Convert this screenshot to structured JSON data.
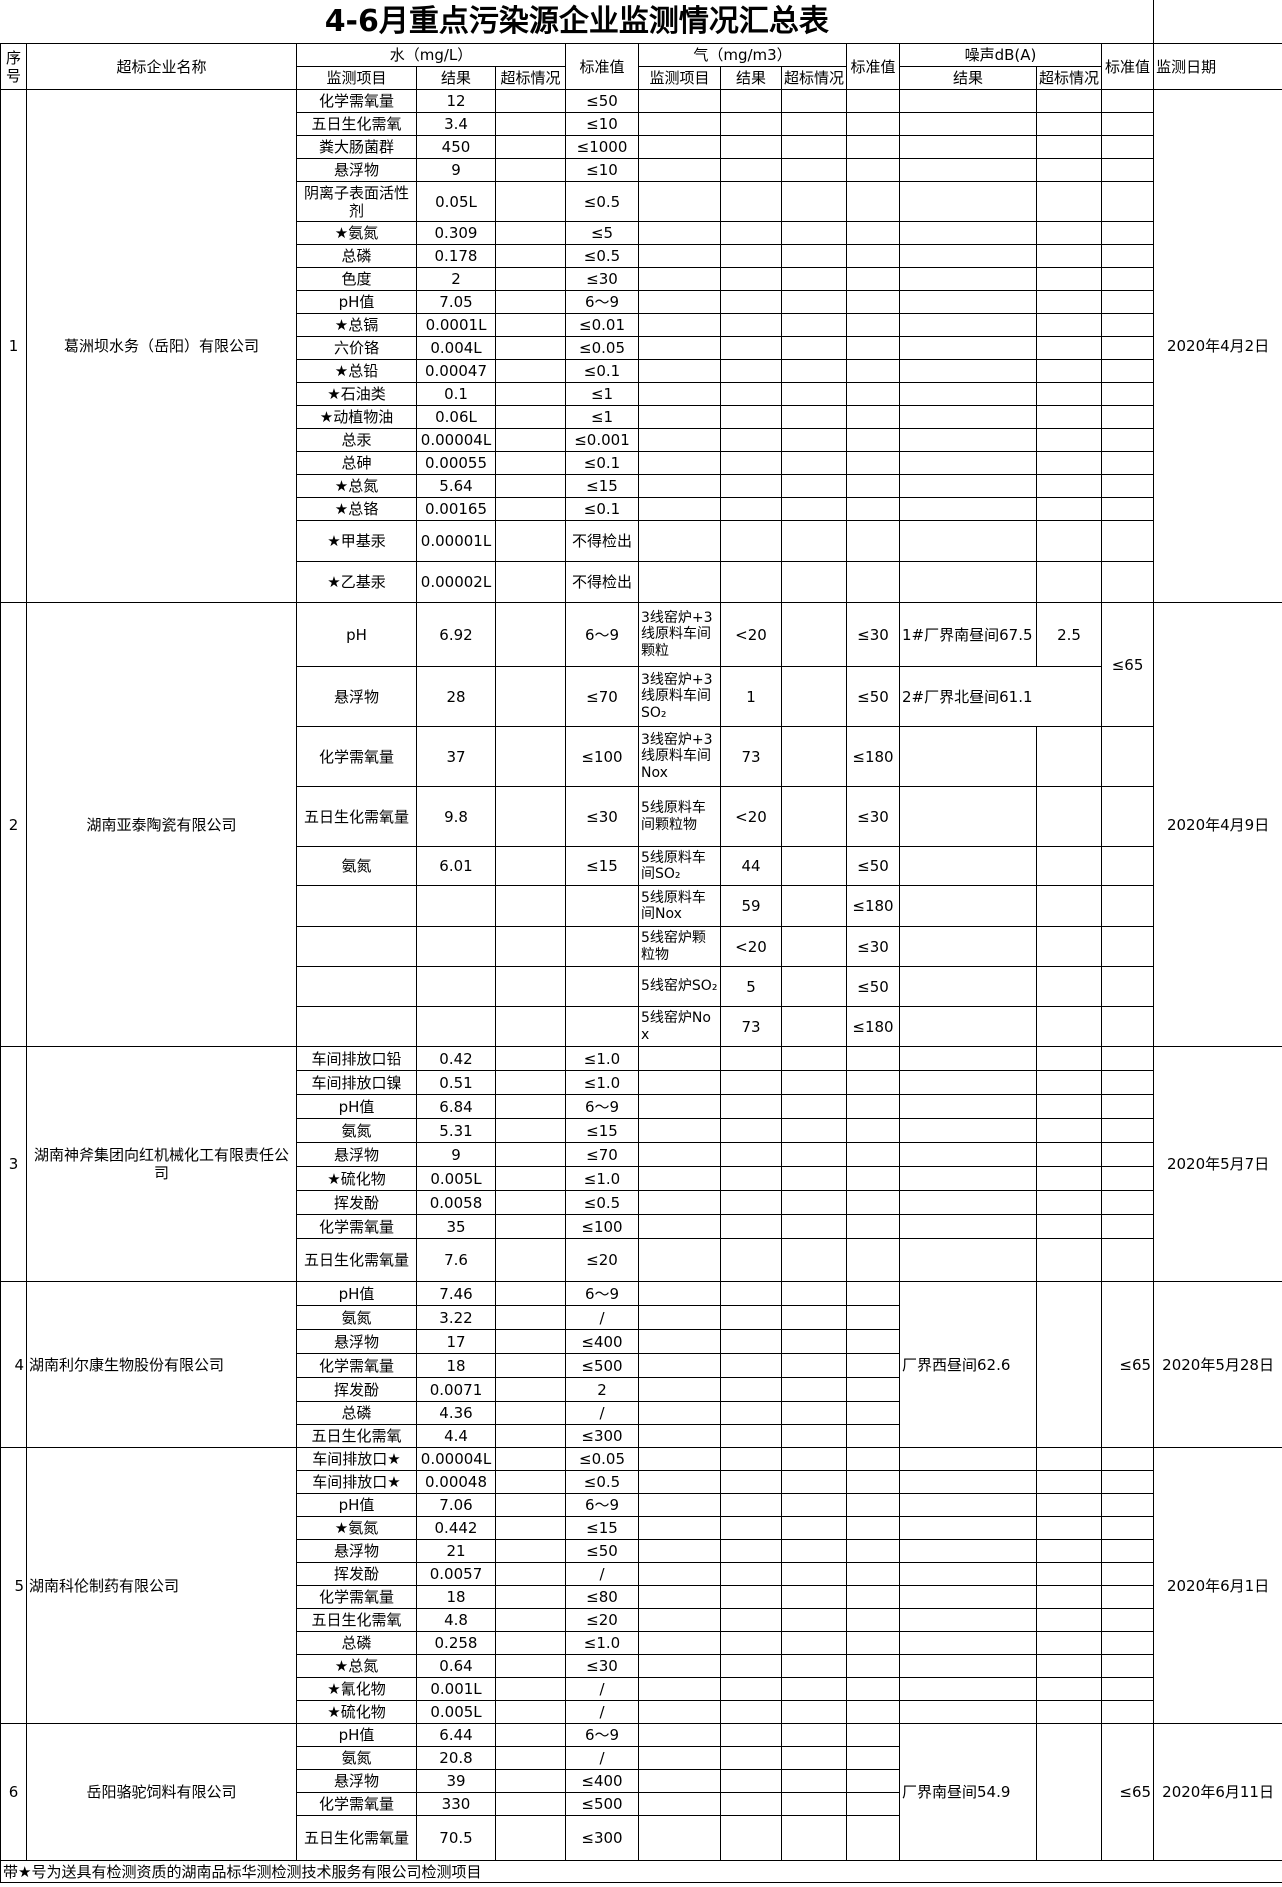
{
  "title": "4-6月重点污染源企业监测情况汇总表",
  "header": {
    "seq": "序号",
    "company": "超标企业名称",
    "water": "水（mg/L）",
    "water_item": "监测项目",
    "water_result": "结果",
    "water_exceed": "超标情况",
    "water_standard": "标准值",
    "gas": "气（mg/m3）",
    "gas_item": "监测项目",
    "gas_result": "结果",
    "gas_exceed": "超标情况",
    "gas_standard": "标准值",
    "noise": "噪声dB(A)",
    "noise_result": "结果",
    "noise_exceed": "超标情况",
    "noise_standard": "标准值",
    "date": "监测日期"
  },
  "blocks": [
    {
      "seq": "1",
      "company": "葛洲坝水务（岳阳）有限公司",
      "date": "2020年4月2日",
      "water": [
        [
          "化学需氧量",
          "12",
          "",
          "≤50"
        ],
        [
          "五日生化需氧",
          "3.4",
          "",
          "≤10"
        ],
        [
          "粪大肠菌群",
          "450",
          "",
          "≤1000"
        ],
        [
          "悬浮物",
          "9",
          "",
          "≤10"
        ],
        [
          "阴离子表面活性剂",
          "0.05L",
          "",
          "≤0.5"
        ],
        [
          "★氨氮",
          "0.309",
          "",
          "≤5"
        ],
        [
          "总磷",
          "0.178",
          "",
          "≤0.5"
        ],
        [
          "色度",
          "2",
          "",
          "≤30"
        ],
        [
          "pH值",
          "7.05",
          "",
          "6～9"
        ],
        [
          "★总镉",
          "0.0001L",
          "",
          "≤0.01"
        ],
        [
          "六价铬",
          "0.004L",
          "",
          "≤0.05"
        ],
        [
          "★总铅",
          "0.00047",
          "",
          "≤0.1"
        ],
        [
          "★石油类",
          "0.1",
          "",
          "≤1"
        ],
        [
          "★动植物油",
          "0.06L",
          "",
          "≤1"
        ],
        [
          "总汞",
          "0.00004L",
          "",
          "≤0.001"
        ],
        [
          "总砷",
          "0.00055",
          "",
          "≤0.1"
        ],
        [
          "★总氮",
          "5.64",
          "",
          "≤15"
        ],
        [
          "★总铬",
          "0.00165",
          "",
          "≤0.1"
        ],
        [
          "★甲基汞",
          "0.00001L",
          "",
          "不得检出"
        ],
        [
          "★乙基汞",
          "0.00002L",
          "",
          "不得检出"
        ]
      ],
      "gas": [],
      "noise": {
        "mode": "grid"
      }
    },
    {
      "seq": "2",
      "company": "湖南亚泰陶瓷有限公司",
      "date": "2020年4月9日",
      "water": [
        [
          "pH",
          "6.92",
          "",
          "6～9"
        ],
        [
          "悬浮物",
          "28",
          "",
          "≤70"
        ],
        [
          "化学需氧量",
          "37",
          "",
          "≤100"
        ],
        [
          "五日生化需氧量",
          "9.8",
          "",
          "≤30"
        ],
        [
          "氨氮",
          "6.01",
          "",
          "≤15"
        ]
      ],
      "gas": [
        [
          "3线窑炉+3线原料车间颗粒",
          "<20",
          "",
          "≤30"
        ],
        [
          "3线窑炉+3线原料车间SO₂",
          "1",
          "",
          "≤50"
        ],
        [
          "3线窑炉+3线原料车间Nox",
          "73",
          "",
          "≤180"
        ],
        [
          "5线原料车间颗粒物",
          "<20",
          "",
          "≤30"
        ],
        [
          "5线原料车间SO₂",
          "44",
          "",
          "≤50"
        ],
        [
          "5线原料车间Nox",
          "59",
          "",
          "≤180"
        ],
        [
          "5线窑炉颗粒物",
          "<20",
          "",
          "≤30"
        ],
        [
          "5线窑炉SO₂",
          "5",
          "",
          "≤50"
        ],
        [
          "5线窑炉Nox",
          "73",
          "",
          "≤180"
        ]
      ],
      "noise": {
        "mode": "split",
        "rows": [
          {
            "result": "1#厂界南昼间67.5",
            "exceed": "2.5"
          },
          {
            "result": "2#厂界北昼间61.1"
          }
        ],
        "standard": "≤65"
      }
    },
    {
      "seq": "3",
      "company": "湖南神斧集团向红机械化工有限责任公司",
      "date": "2020年5月7日",
      "water": [
        [
          "车间排放口铅",
          "0.42",
          "",
          "≤1.0"
        ],
        [
          "车间排放口镍",
          "0.51",
          "",
          "≤1.0"
        ],
        [
          "pH值",
          "6.84",
          "",
          "6～9"
        ],
        [
          "氨氮",
          "5.31",
          "",
          "≤15"
        ],
        [
          "悬浮物",
          "9",
          "",
          "≤70"
        ],
        [
          "★硫化物",
          "0.005L",
          "",
          "≤1.0"
        ],
        [
          "挥发酚",
          "0.0058",
          "",
          "≤0.5"
        ],
        [
          "化学需氧量",
          "35",
          "",
          "≤100"
        ],
        [
          "五日生化需氧量",
          "7.6",
          "",
          "≤20"
        ]
      ],
      "gas": [],
      "noise": {
        "mode": "grid"
      }
    },
    {
      "seq": "4",
      "company": "湖南利尔康生物股份有限公司",
      "date": "2020年5月28日",
      "water": [
        [
          "pH值",
          "7.46",
          "",
          "6～9"
        ],
        [
          "氨氮",
          "3.22",
          "",
          "/"
        ],
        [
          "悬浮物",
          "17",
          "",
          "≤400"
        ],
        [
          "化学需氧量",
          "18",
          "",
          "≤500"
        ],
        [
          "挥发酚",
          "0.0071",
          "",
          "2"
        ],
        [
          "总磷",
          "4.36",
          "",
          "/"
        ],
        [
          "五日生化需氧",
          "4.4",
          "",
          "≤300"
        ]
      ],
      "gas": [],
      "noise": {
        "mode": "merged",
        "result": "厂界西昼间62.6",
        "exceed": "",
        "standard": "≤65"
      }
    },
    {
      "seq": "5",
      "company": "湖南科伦制药有限公司",
      "date": "2020年6月1日",
      "water": [
        [
          "车间排放口★",
          "0.00004L",
          "",
          "≤0.05"
        ],
        [
          "车间排放口★",
          "0.00048",
          "",
          "≤0.5"
        ],
        [
          "pH值",
          "7.06",
          "",
          "6～9"
        ],
        [
          "★氨氮",
          "0.442",
          "",
          "≤15"
        ],
        [
          "悬浮物",
          "21",
          "",
          "≤50"
        ],
        [
          "挥发酚",
          "0.0057",
          "",
          "/"
        ],
        [
          "化学需氧量",
          "18",
          "",
          "≤80"
        ],
        [
          "五日生化需氧",
          "4.8",
          "",
          "≤20"
        ],
        [
          "总磷",
          "0.258",
          "",
          "≤1.0"
        ],
        [
          "★总氮",
          "0.64",
          "",
          "≤30"
        ],
        [
          "★氰化物",
          "0.001L",
          "",
          "/"
        ],
        [
          "★硫化物",
          "0.005L",
          "",
          "/"
        ]
      ],
      "gas": [],
      "noise": {
        "mode": "grid"
      }
    },
    {
      "seq": "6",
      "company": "岳阳骆驼饲料有限公司",
      "date": "2020年6月11日",
      "water": [
        [
          "pH值",
          "6.44",
          "",
          "6～9"
        ],
        [
          "氨氮",
          "20.8",
          "",
          "/"
        ],
        [
          "悬浮物",
          "39",
          "",
          "≤400"
        ],
        [
          "化学需氧量",
          "330",
          "",
          "≤500"
        ],
        [
          "五日生化需氧量",
          "70.5",
          "",
          "≤300"
        ]
      ],
      "gas": [],
      "noise": {
        "mode": "merged",
        "result": "厂界南昼间54.9",
        "exceed": "",
        "standard": "≤65"
      }
    }
  ],
  "footnote": "带★号为送具有检测资质的湖南品标华测检测技术服务有限公司检测项目"
}
